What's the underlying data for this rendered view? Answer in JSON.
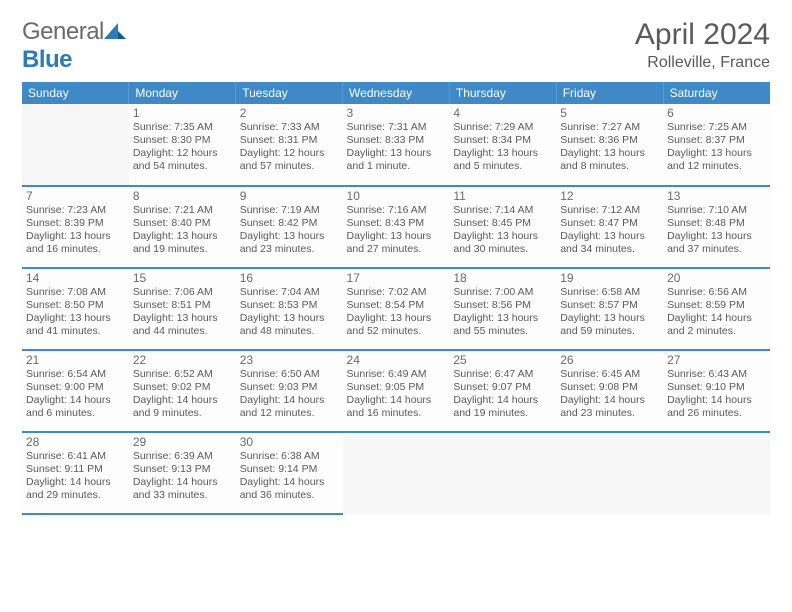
{
  "brand": {
    "name_a": "General",
    "name_b": "Blue"
  },
  "title": "April 2024",
  "location": "Rolleville, France",
  "columns": [
    "Sunday",
    "Monday",
    "Tuesday",
    "Wednesday",
    "Thursday",
    "Friday",
    "Saturday"
  ],
  "colors": {
    "header_bg": "#3e89c6",
    "header_text": "#ffffff",
    "border": "#3e89c6",
    "text": "#5a5a5a",
    "empty_bg": "#f6f6f6"
  },
  "fonts": {
    "title_size": 30,
    "subtitle_size": 16,
    "daynum_size": 12,
    "info_size": 10.5
  },
  "start_offset": 1,
  "days": [
    {
      "n": 1,
      "sr": "7:35 AM",
      "ss": "8:30 PM",
      "dl": "12 hours and 54 minutes."
    },
    {
      "n": 2,
      "sr": "7:33 AM",
      "ss": "8:31 PM",
      "dl": "12 hours and 57 minutes."
    },
    {
      "n": 3,
      "sr": "7:31 AM",
      "ss": "8:33 PM",
      "dl": "13 hours and 1 minute."
    },
    {
      "n": 4,
      "sr": "7:29 AM",
      "ss": "8:34 PM",
      "dl": "13 hours and 5 minutes."
    },
    {
      "n": 5,
      "sr": "7:27 AM",
      "ss": "8:36 PM",
      "dl": "13 hours and 8 minutes."
    },
    {
      "n": 6,
      "sr": "7:25 AM",
      "ss": "8:37 PM",
      "dl": "13 hours and 12 minutes."
    },
    {
      "n": 7,
      "sr": "7:23 AM",
      "ss": "8:39 PM",
      "dl": "13 hours and 16 minutes."
    },
    {
      "n": 8,
      "sr": "7:21 AM",
      "ss": "8:40 PM",
      "dl": "13 hours and 19 minutes."
    },
    {
      "n": 9,
      "sr": "7:19 AM",
      "ss": "8:42 PM",
      "dl": "13 hours and 23 minutes."
    },
    {
      "n": 10,
      "sr": "7:16 AM",
      "ss": "8:43 PM",
      "dl": "13 hours and 27 minutes."
    },
    {
      "n": 11,
      "sr": "7:14 AM",
      "ss": "8:45 PM",
      "dl": "13 hours and 30 minutes."
    },
    {
      "n": 12,
      "sr": "7:12 AM",
      "ss": "8:47 PM",
      "dl": "13 hours and 34 minutes."
    },
    {
      "n": 13,
      "sr": "7:10 AM",
      "ss": "8:48 PM",
      "dl": "13 hours and 37 minutes."
    },
    {
      "n": 14,
      "sr": "7:08 AM",
      "ss": "8:50 PM",
      "dl": "13 hours and 41 minutes."
    },
    {
      "n": 15,
      "sr": "7:06 AM",
      "ss": "8:51 PM",
      "dl": "13 hours and 44 minutes."
    },
    {
      "n": 16,
      "sr": "7:04 AM",
      "ss": "8:53 PM",
      "dl": "13 hours and 48 minutes."
    },
    {
      "n": 17,
      "sr": "7:02 AM",
      "ss": "8:54 PM",
      "dl": "13 hours and 52 minutes."
    },
    {
      "n": 18,
      "sr": "7:00 AM",
      "ss": "8:56 PM",
      "dl": "13 hours and 55 minutes."
    },
    {
      "n": 19,
      "sr": "6:58 AM",
      "ss": "8:57 PM",
      "dl": "13 hours and 59 minutes."
    },
    {
      "n": 20,
      "sr": "6:56 AM",
      "ss": "8:59 PM",
      "dl": "14 hours and 2 minutes."
    },
    {
      "n": 21,
      "sr": "6:54 AM",
      "ss": "9:00 PM",
      "dl": "14 hours and 6 minutes."
    },
    {
      "n": 22,
      "sr": "6:52 AM",
      "ss": "9:02 PM",
      "dl": "14 hours and 9 minutes."
    },
    {
      "n": 23,
      "sr": "6:50 AM",
      "ss": "9:03 PM",
      "dl": "14 hours and 12 minutes."
    },
    {
      "n": 24,
      "sr": "6:49 AM",
      "ss": "9:05 PM",
      "dl": "14 hours and 16 minutes."
    },
    {
      "n": 25,
      "sr": "6:47 AM",
      "ss": "9:07 PM",
      "dl": "14 hours and 19 minutes."
    },
    {
      "n": 26,
      "sr": "6:45 AM",
      "ss": "9:08 PM",
      "dl": "14 hours and 23 minutes."
    },
    {
      "n": 27,
      "sr": "6:43 AM",
      "ss": "9:10 PM",
      "dl": "14 hours and 26 minutes."
    },
    {
      "n": 28,
      "sr": "6:41 AM",
      "ss": "9:11 PM",
      "dl": "14 hours and 29 minutes."
    },
    {
      "n": 29,
      "sr": "6:39 AM",
      "ss": "9:13 PM",
      "dl": "14 hours and 33 minutes."
    },
    {
      "n": 30,
      "sr": "6:38 AM",
      "ss": "9:14 PM",
      "dl": "14 hours and 36 minutes."
    }
  ],
  "labels": {
    "sunrise": "Sunrise:",
    "sunset": "Sunset:",
    "daylight": "Daylight:"
  }
}
